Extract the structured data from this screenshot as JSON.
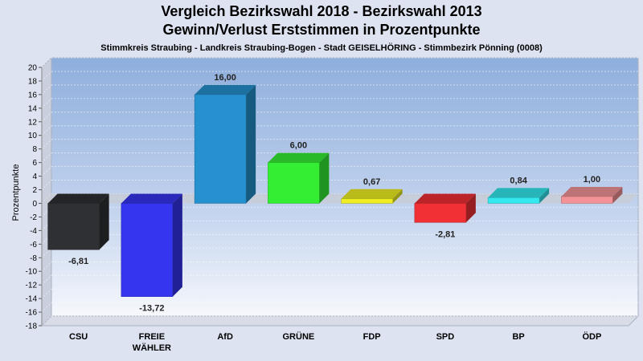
{
  "chart_data": {
    "type": "bar",
    "title_line1": "Vergleich Bezirkswahl 2018 - Bezirkswahl 2013",
    "title_line2": "Gewinn/Verlust Erststimmen in Prozentpunkte",
    "subtitle": "Stimmkreis Straubing - Landkreis Straubing-Bogen - Stadt GEISELHÖRING - Stimmbezirk Pönning (0008)",
    "xlabel": "",
    "ylabel": "Prozentpunkte",
    "ylim": [
      -18,
      20
    ],
    "yticks": [
      20,
      18,
      16,
      14,
      12,
      10,
      8,
      6,
      4,
      2,
      0,
      -2,
      -4,
      -6,
      -8,
      -10,
      -12,
      -14,
      -16,
      -18
    ],
    "grid": true,
    "categories": [
      [
        "CSU"
      ],
      [
        "FREIE",
        "WÄHLER"
      ],
      [
        "AfD"
      ],
      [
        "GRÜNE"
      ],
      [
        "FDP"
      ],
      [
        "SPD"
      ],
      [
        "BP"
      ],
      [
        "ÖDP"
      ]
    ],
    "values": [
      -6.81,
      -13.72,
      16.0,
      6.0,
      0.67,
      -2.81,
      0.84,
      1.0
    ],
    "value_labels": [
      "-6,81",
      "-13,72",
      "16,00",
      "6,00",
      "0,67",
      "-2,81",
      "0,84",
      "1,00"
    ],
    "colors": [
      "#2e3033",
      "#3535f0",
      "#2591cf",
      "#33ee33",
      "#eeee22",
      "#f03035",
      "#33e8ee",
      "#f39398"
    ]
  }
}
